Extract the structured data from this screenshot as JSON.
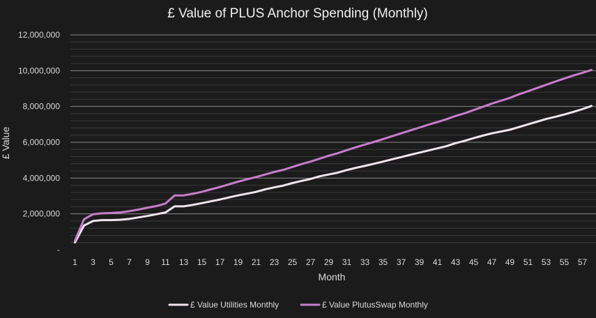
{
  "chart_data": {
    "type": "line",
    "title": "£ Value of PLUS Anchor Spending (Monthly)",
    "xlabel": "Month",
    "ylabel": "£ Value",
    "ylim": [
      0,
      12000000
    ],
    "y_ticks": [
      0,
      2000000,
      4000000,
      6000000,
      8000000,
      10000000,
      12000000
    ],
    "y_tick_labels": [
      "-",
      "2,000,000",
      "4,000,000",
      "6,000,000",
      "8,000,000",
      "10,000,000",
      "12,000,000"
    ],
    "x": [
      1,
      2,
      3,
      4,
      5,
      6,
      7,
      8,
      9,
      10,
      11,
      12,
      13,
      14,
      15,
      16,
      17,
      18,
      19,
      20,
      21,
      22,
      23,
      24,
      25,
      26,
      27,
      28,
      29,
      30,
      31,
      32,
      33,
      34,
      35,
      36,
      37,
      38,
      39,
      40,
      41,
      42,
      43,
      44,
      45,
      46,
      47,
      48,
      49,
      50,
      51,
      52,
      53,
      54,
      55,
      56,
      57,
      58
    ],
    "x_tick_labels": [
      "1",
      "3",
      "5",
      "7",
      "9",
      "11",
      "13",
      "15",
      "17",
      "19",
      "21",
      "23",
      "25",
      "27",
      "29",
      "31",
      "33",
      "35",
      "37",
      "39",
      "41",
      "43",
      "45",
      "47",
      "49",
      "51",
      "53",
      "55",
      "57"
    ],
    "series": [
      {
        "name": "£ Value Utilities Monthly",
        "color": "#f3e4f0",
        "values": [
          400000,
          1350000,
          1600000,
          1650000,
          1650000,
          1670000,
          1720000,
          1800000,
          1880000,
          1980000,
          2080000,
          2420000,
          2420000,
          2500000,
          2600000,
          2700000,
          2800000,
          2920000,
          3030000,
          3130000,
          3230000,
          3370000,
          3480000,
          3580000,
          3720000,
          3840000,
          3950000,
          4100000,
          4200000,
          4300000,
          4450000,
          4570000,
          4680000,
          4800000,
          4920000,
          5050000,
          5170000,
          5300000,
          5420000,
          5540000,
          5660000,
          5780000,
          5950000,
          6080000,
          6230000,
          6370000,
          6500000,
          6600000,
          6700000,
          6850000,
          7000000,
          7150000,
          7300000,
          7420000,
          7550000,
          7700000,
          7850000,
          8030000
        ]
      },
      {
        "name": "£ Value PlutusSwap Monthly",
        "color": "#c77dcc",
        "values": [
          500000,
          1700000,
          1980000,
          2030000,
          2050000,
          2080000,
          2150000,
          2240000,
          2340000,
          2440000,
          2580000,
          3030000,
          3030000,
          3120000,
          3230000,
          3370000,
          3500000,
          3650000,
          3800000,
          3930000,
          4060000,
          4200000,
          4340000,
          4460000,
          4620000,
          4780000,
          4920000,
          5080000,
          5250000,
          5390000,
          5560000,
          5720000,
          5870000,
          6020000,
          6180000,
          6340000,
          6500000,
          6660000,
          6820000,
          6980000,
          7130000,
          7290000,
          7470000,
          7620000,
          7800000,
          7980000,
          8160000,
          8320000,
          8480000,
          8680000,
          8850000,
          9030000,
          9210000,
          9390000,
          9560000,
          9730000,
          9880000,
          10040000
        ]
      }
    ],
    "legend_position": "bottom-center",
    "grid": true
  }
}
